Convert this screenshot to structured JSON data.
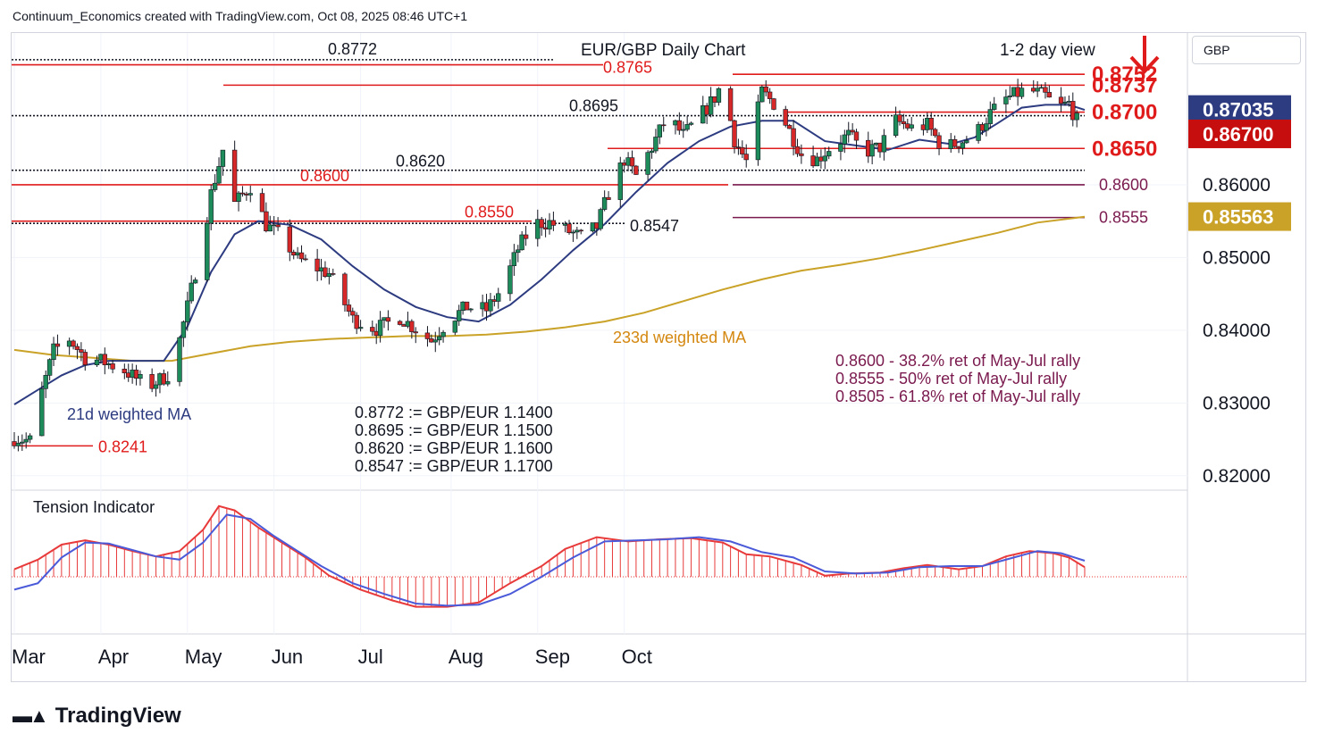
{
  "header": {
    "credit": "Continuum_Economics created with TradingView.com, Oct 08, 2025 08:46 UTC+1",
    "currency_button": "GBP"
  },
  "brand": {
    "name": "TradingView",
    "logo_icon": "tradingview-logo-icon"
  },
  "chart_data": {
    "type": "candlestick",
    "title": "EUR/GBP Daily Chart",
    "subtitle": "1-2 day view",
    "direction_icon": "red-down-arrow-icon",
    "y_ticks": [
      "0.86000",
      "0.85000",
      "0.84000",
      "0.83000",
      "0.82000"
    ],
    "y_tick_values": [
      0.86,
      0.85,
      0.84,
      0.83,
      0.82
    ],
    "ylim": [
      0.8185,
      0.8805
    ],
    "x_ticks": [
      "Mar",
      "Apr",
      "May",
      "Jun",
      "Jul",
      "Aug",
      "Sep",
      "Oct"
    ],
    "price_badges": [
      {
        "label": "0.87035",
        "value": 0.87035,
        "bg": "#2d3b80"
      },
      {
        "label": "0.86700",
        "value": 0.867,
        "bg": "#c70e0e"
      },
      {
        "label": "0.85563",
        "value": 0.85563,
        "bg": "#c9a227"
      }
    ],
    "resistance_labels": [
      {
        "label": "0.8752",
        "value": 0.8752
      },
      {
        "label": "0.8737",
        "value": 0.8737
      },
      {
        "label": "0.8700",
        "value": 0.87
      },
      {
        "label": "0.8650",
        "value": 0.865
      }
    ],
    "support_labels": [
      {
        "label": "0.8600",
        "value": 0.86
      },
      {
        "label": "0.8555",
        "value": 0.8555
      }
    ],
    "level_labels": [
      {
        "label": "0.8772",
        "value": 0.8772,
        "color": "#131722"
      },
      {
        "label": "0.8765",
        "value": 0.8765,
        "color": "#e01b1b"
      },
      {
        "label": "0.8695",
        "value": 0.8695,
        "color": "#131722"
      },
      {
        "label": "0.8620",
        "value": 0.862,
        "color": "#131722"
      },
      {
        "label": "0.8600",
        "value": 0.86,
        "color": "#e01b1b"
      },
      {
        "label": "0.8550",
        "value": 0.855,
        "color": "#e01b1b"
      },
      {
        "label": "0.8547",
        "value": 0.8547,
        "color": "#131722"
      },
      {
        "label": "0.8241",
        "value": 0.8241,
        "color": "#e01b1b"
      }
    ],
    "fib_notes": [
      "0.8600 - 38.2% ret of May-Jul rally",
      "0.8555 - 50% ret of May-Jul rally",
      "0.8505 - 61.8% ret of May-Jul rally"
    ],
    "conversion_notes": [
      "0.8772 := GBP/EUR 1.1400",
      "0.8695 := GBP/EUR 1.1500",
      "0.8620 := GBP/EUR 1.1600",
      "0.8547 := GBP/EUR 1.1700"
    ],
    "ma_labels": {
      "ma21": "21d weighted MA",
      "ma233": "233d weighted MA"
    },
    "indicator_title": "Tension Indicator",
    "colors": {
      "up": "#1e8c5a",
      "down": "#d62828",
      "ma21": "#2d3b80",
      "ma233": "#c9a227",
      "red_level": "#e01b1b",
      "purple_level": "#7a1a4e",
      "fib_text": "#7a1a4e",
      "conv_text": "#131722",
      "tension_red": "#e83a3a",
      "tension_blue": "#4a5ad8"
    },
    "close_path": [
      [
        0,
        0.8252
      ],
      [
        4,
        0.8248
      ],
      [
        6,
        0.8296
      ],
      [
        10,
        0.8372
      ],
      [
        14,
        0.8388
      ],
      [
        18,
        0.8362
      ],
      [
        22,
        0.8358
      ],
      [
        28,
        0.8345
      ],
      [
        34,
        0.8322
      ],
      [
        40,
        0.8342
      ],
      [
        44,
        0.8432
      ],
      [
        48,
        0.8528
      ],
      [
        50,
        0.8588
      ],
      [
        53,
        0.8648
      ],
      [
        56,
        0.8574
      ],
      [
        60,
        0.8598
      ],
      [
        64,
        0.8545
      ],
      [
        68,
        0.8528
      ],
      [
        72,
        0.8498
      ],
      [
        76,
        0.8488
      ],
      [
        80,
        0.8478
      ],
      [
        86,
        0.8415
      ],
      [
        92,
        0.8402
      ],
      [
        98,
        0.8418
      ],
      [
        103,
        0.8398
      ],
      [
        106,
        0.8386
      ],
      [
        110,
        0.8412
      ],
      [
        115,
        0.8432
      ],
      [
        120,
        0.8428
      ],
      [
        124,
        0.8458
      ],
      [
        128,
        0.8512
      ],
      [
        132,
        0.8547
      ],
      [
        136,
        0.8548
      ],
      [
        140,
        0.8538
      ],
      [
        144,
        0.8528
      ],
      [
        148,
        0.8542
      ],
      [
        151,
        0.8588
      ],
      [
        155,
        0.8635
      ],
      [
        158,
        0.8612
      ],
      [
        162,
        0.8652
      ],
      [
        166,
        0.8695
      ],
      [
        170,
        0.8668
      ],
      [
        174,
        0.8692
      ],
      [
        178,
        0.872
      ],
      [
        180,
        0.8742
      ],
      [
        183,
        0.8662
      ],
      [
        186,
        0.8632
      ],
      [
        190,
        0.8728
      ],
      [
        193,
        0.8712
      ],
      [
        196,
        0.8685
      ],
      [
        200,
        0.8642
      ],
      [
        204,
        0.8635
      ],
      [
        208,
        0.8655
      ],
      [
        212,
        0.8668
      ],
      [
        216,
        0.8645
      ],
      [
        220,
        0.8652
      ],
      [
        224,
        0.8688
      ],
      [
        228,
        0.8678
      ],
      [
        232,
        0.8682
      ],
      [
        236,
        0.865
      ],
      [
        240,
        0.8658
      ],
      [
        244,
        0.8668
      ],
      [
        248,
        0.8698
      ],
      [
        252,
        0.8718
      ],
      [
        256,
        0.8728
      ],
      [
        259,
        0.8728
      ],
      [
        262,
        0.8722
      ],
      [
        265,
        0.8705
      ],
      [
        268,
        0.8712
      ],
      [
        270,
        0.8688
      ],
      [
        272,
        0.867
      ]
    ],
    "ma21_path": [
      [
        0,
        0.8298
      ],
      [
        6,
        0.8318
      ],
      [
        12,
        0.8338
      ],
      [
        18,
        0.8352
      ],
      [
        24,
        0.8358
      ],
      [
        30,
        0.8358
      ],
      [
        38,
        0.8358
      ],
      [
        44,
        0.8405
      ],
      [
        50,
        0.848
      ],
      [
        56,
        0.8532
      ],
      [
        62,
        0.855
      ],
      [
        70,
        0.8545
      ],
      [
        78,
        0.8525
      ],
      [
        86,
        0.8488
      ],
      [
        94,
        0.8456
      ],
      [
        102,
        0.8432
      ],
      [
        110,
        0.8418
      ],
      [
        118,
        0.8412
      ],
      [
        126,
        0.8435
      ],
      [
        134,
        0.847
      ],
      [
        142,
        0.851
      ],
      [
        150,
        0.8546
      ],
      [
        158,
        0.859
      ],
      [
        166,
        0.863
      ],
      [
        174,
        0.866
      ],
      [
        182,
        0.868
      ],
      [
        190,
        0.8688
      ],
      [
        198,
        0.8688
      ],
      [
        206,
        0.866
      ],
      [
        214,
        0.8654
      ],
      [
        222,
        0.8648
      ],
      [
        230,
        0.8662
      ],
      [
        238,
        0.8656
      ],
      [
        244,
        0.8665
      ],
      [
        250,
        0.8685
      ],
      [
        256,
        0.8706
      ],
      [
        262,
        0.871
      ],
      [
        268,
        0.871
      ],
      [
        272,
        0.8703
      ]
    ],
    "ma233_path": [
      [
        0,
        0.8373
      ],
      [
        10,
        0.8366
      ],
      [
        20,
        0.8362
      ],
      [
        30,
        0.8358
      ],
      [
        40,
        0.8358
      ],
      [
        50,
        0.8368
      ],
      [
        60,
        0.8378
      ],
      [
        70,
        0.8384
      ],
      [
        80,
        0.8388
      ],
      [
        90,
        0.839
      ],
      [
        100,
        0.8392
      ],
      [
        110,
        0.8392
      ],
      [
        120,
        0.8394
      ],
      [
        130,
        0.8398
      ],
      [
        140,
        0.8404
      ],
      [
        150,
        0.8412
      ],
      [
        160,
        0.8424
      ],
      [
        170,
        0.844
      ],
      [
        180,
        0.8456
      ],
      [
        190,
        0.847
      ],
      [
        200,
        0.8482
      ],
      [
        210,
        0.849
      ],
      [
        220,
        0.8499
      ],
      [
        230,
        0.851
      ],
      [
        240,
        0.8522
      ],
      [
        250,
        0.8534
      ],
      [
        260,
        0.8548
      ],
      [
        272,
        0.8556
      ]
    ],
    "tension_red_path": [
      [
        0,
        0.35
      ],
      [
        6,
        0.8
      ],
      [
        12,
        1.5
      ],
      [
        18,
        1.7
      ],
      [
        24,
        1.5
      ],
      [
        30,
        1.2
      ],
      [
        36,
        0.95
      ],
      [
        42,
        1.2
      ],
      [
        48,
        2.2
      ],
      [
        52,
        3.3
      ],
      [
        56,
        3.1
      ],
      [
        62,
        2.3
      ],
      [
        68,
        1.6
      ],
      [
        74,
        0.9
      ],
      [
        80,
        0.05
      ],
      [
        88,
        -0.6
      ],
      [
        96,
        -1.1
      ],
      [
        102,
        -1.4
      ],
      [
        110,
        -1.4
      ],
      [
        118,
        -1.2
      ],
      [
        126,
        -0.3
      ],
      [
        134,
        0.5
      ],
      [
        140,
        1.3
      ],
      [
        148,
        1.85
      ],
      [
        156,
        1.65
      ],
      [
        164,
        1.75
      ],
      [
        172,
        1.8
      ],
      [
        180,
        1.6
      ],
      [
        186,
        1.05
      ],
      [
        192,
        0.95
      ],
      [
        200,
        0.55
      ],
      [
        206,
        0.05
      ],
      [
        212,
        0.15
      ],
      [
        220,
        0.2
      ],
      [
        226,
        0.4
      ],
      [
        232,
        0.55
      ],
      [
        240,
        0.35
      ],
      [
        246,
        0.5
      ],
      [
        252,
        0.95
      ],
      [
        258,
        1.2
      ],
      [
        264,
        1.1
      ],
      [
        268,
        0.9
      ],
      [
        272,
        0.45
      ]
    ],
    "tension_blue_path": [
      [
        0,
        -0.6
      ],
      [
        6,
        -0.3
      ],
      [
        12,
        0.9
      ],
      [
        18,
        1.6
      ],
      [
        24,
        1.55
      ],
      [
        30,
        1.25
      ],
      [
        36,
        0.95
      ],
      [
        42,
        0.8
      ],
      [
        48,
        1.6
      ],
      [
        54,
        2.9
      ],
      [
        60,
        2.7
      ],
      [
        66,
        1.9
      ],
      [
        72,
        1.2
      ],
      [
        78,
        0.5
      ],
      [
        86,
        -0.3
      ],
      [
        94,
        -0.8
      ],
      [
        102,
        -1.25
      ],
      [
        110,
        -1.35
      ],
      [
        118,
        -1.3
      ],
      [
        126,
        -0.8
      ],
      [
        134,
        0.0
      ],
      [
        142,
        0.9
      ],
      [
        150,
        1.65
      ],
      [
        158,
        1.7
      ],
      [
        166,
        1.75
      ],
      [
        174,
        1.85
      ],
      [
        182,
        1.65
      ],
      [
        190,
        1.15
      ],
      [
        198,
        0.9
      ],
      [
        206,
        0.25
      ],
      [
        214,
        0.15
      ],
      [
        222,
        0.2
      ],
      [
        230,
        0.45
      ],
      [
        238,
        0.5
      ],
      [
        246,
        0.5
      ],
      [
        254,
        0.9
      ],
      [
        260,
        1.2
      ],
      [
        266,
        1.1
      ],
      [
        272,
        0.75
      ]
    ]
  }
}
